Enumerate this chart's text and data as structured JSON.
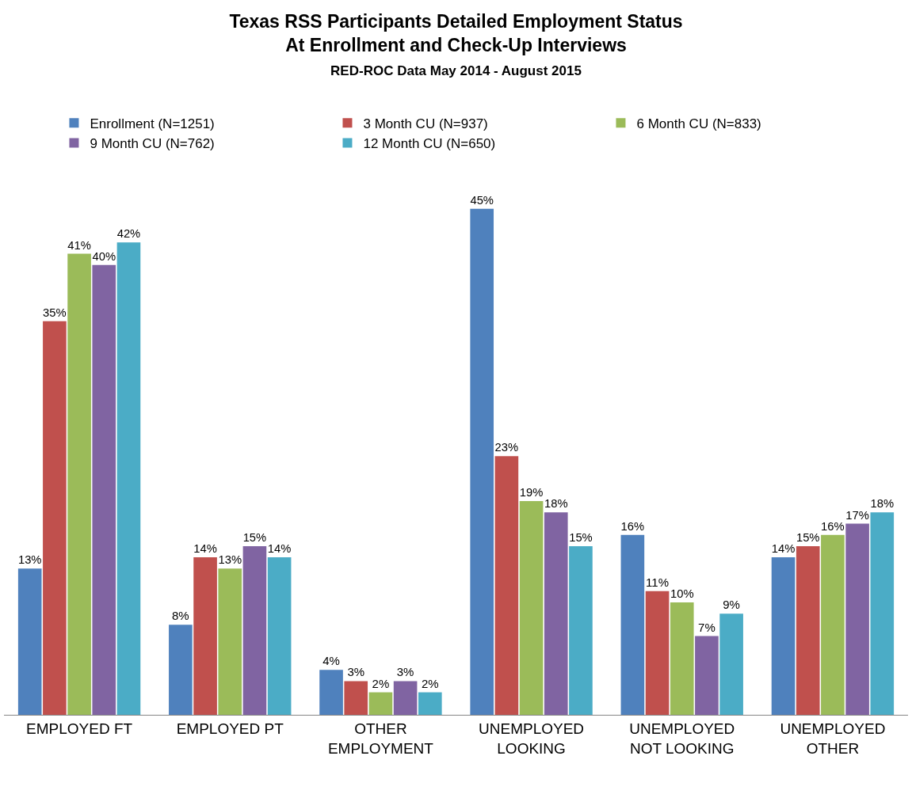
{
  "chart_data": {
    "type": "bar",
    "title": "Texas RSS Participants Detailed Employment Status\nAt Enrollment and Check-Up Interviews",
    "subtitle": "RED-ROC Data May 2014 - August 2015",
    "categories": [
      "EMPLOYED FT",
      "EMPLOYED PT",
      "OTHER\nEMPLOYMENT",
      "UNEMPLOYED\nLOOKING",
      "UNEMPLOYED\nNOT LOOKING",
      "UNEMPLOYED\nOTHER"
    ],
    "series": [
      {
        "name": "Enrollment (N=1251)",
        "color": "#4f81bd",
        "values": [
          13,
          8,
          4,
          45,
          16,
          14
        ],
        "value_labels": [
          "13%",
          "8%",
          "4%",
          "45%",
          "16%",
          "14%"
        ]
      },
      {
        "name": "3 Month CU (N=937)",
        "color": "#c0504d",
        "values": [
          35,
          14,
          3,
          23,
          11,
          15
        ],
        "value_labels": [
          "35%",
          "14%",
          "3%",
          "23%",
          "11%",
          "15%"
        ]
      },
      {
        "name": "6 Month CU (N=833)",
        "color": "#9bbb59",
        "values": [
          41,
          13,
          2,
          19,
          10,
          16
        ],
        "value_labels": [
          "41%",
          "13%",
          "2%",
          "19%",
          "10%",
          "16%"
        ]
      },
      {
        "name": "9 Month CU (N=762)",
        "color": "#8064a2",
        "values": [
          40,
          15,
          3,
          18,
          7,
          17
        ],
        "value_labels": [
          "40%",
          "15%",
          "3%",
          "18%",
          "7%",
          "17%"
        ]
      },
      {
        "name": "12 Month CU (N=650)",
        "color": "#4bacc6",
        "values": [
          42,
          14,
          2,
          15,
          9,
          18
        ],
        "value_labels": [
          "42%",
          "14%",
          "2%",
          "15%",
          "9%",
          "18%"
        ]
      }
    ],
    "legend": "top",
    "tick_labels": "x"
  }
}
